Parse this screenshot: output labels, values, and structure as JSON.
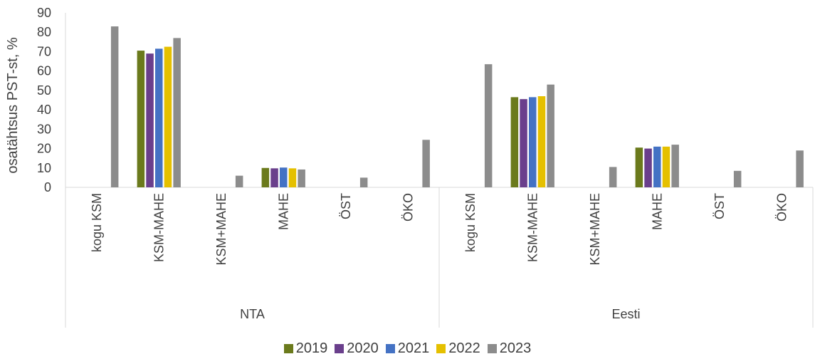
{
  "chart_data": {
    "type": "bar",
    "ylabel": "osatähtsus PST-st, %",
    "ylim": [
      0,
      90
    ],
    "yticks": [
      0,
      10,
      20,
      30,
      40,
      50,
      60,
      70,
      80,
      90
    ],
    "grid": false,
    "legend_position": "bottom",
    "groups": [
      {
        "name": "NTA",
        "categories": [
          "kogu KSM",
          "KSM-MAHE",
          "KSM+MAHE",
          "MAHE",
          "ÖST",
          "ÖKO"
        ],
        "series": [
          {
            "name": "2019",
            "color": "#6b7a1c",
            "values": [
              null,
              70.5,
              null,
              10,
              null,
              null
            ]
          },
          {
            "name": "2020",
            "color": "#6a3f8c",
            "values": [
              null,
              69,
              null,
              9.8,
              null,
              null
            ]
          },
          {
            "name": "2021",
            "color": "#4472c4",
            "values": [
              null,
              71.5,
              null,
              10.2,
              null,
              null
            ]
          },
          {
            "name": "2022",
            "color": "#e5c000",
            "values": [
              null,
              72.5,
              null,
              9.8,
              null,
              null
            ]
          },
          {
            "name": "2023",
            "color": "#8c8c8c",
            "values": [
              83,
              77,
              6,
              9.2,
              5,
              24.5
            ]
          }
        ]
      },
      {
        "name": "Eesti",
        "categories": [
          "kogu KSM",
          "KSM-MAHE",
          "KSM+MAHE",
          "MAHE",
          "ÖST",
          "ÖKO"
        ],
        "series": [
          {
            "name": "2019",
            "color": "#6b7a1c",
            "values": [
              null,
              46.5,
              null,
              20.5,
              null,
              null
            ]
          },
          {
            "name": "2020",
            "color": "#6a3f8c",
            "values": [
              null,
              45.5,
              null,
              20,
              null,
              null
            ]
          },
          {
            "name": "2021",
            "color": "#4472c4",
            "values": [
              null,
              46.5,
              null,
              21,
              null,
              null
            ]
          },
          {
            "name": "2022",
            "color": "#e5c000",
            "values": [
              null,
              47,
              null,
              21,
              null,
              null
            ]
          },
          {
            "name": "2023",
            "color": "#8c8c8c",
            "values": [
              63.5,
              53,
              10.5,
              22,
              8.5,
              19
            ]
          }
        ]
      }
    ]
  }
}
